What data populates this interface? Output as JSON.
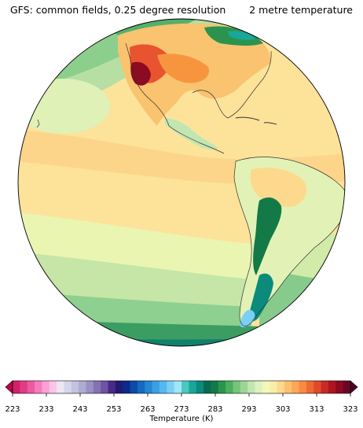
{
  "header": {
    "title_left": "GFS: common fields, 0.25 degree resolution",
    "title_right": "2 metre temperature"
  },
  "map": {
    "projection": "orthographic",
    "region": "Americas and Pacific Ocean",
    "field": "2 metre temperature"
  },
  "colorbar": {
    "label": "Temperature (K)",
    "min": 223,
    "max": 323,
    "step": 2.5,
    "extend": "both",
    "ticks": [
      "223",
      "233",
      "243",
      "253",
      "263",
      "273",
      "283",
      "293",
      "303",
      "313",
      "323"
    ],
    "colors": [
      "#c2004f",
      "#d3206a",
      "#e03c84",
      "#ec5aa0",
      "#f57cbd",
      "#fca0d7",
      "#ffc4ea",
      "#ebe8f4",
      "#d6d6ea",
      "#c3c3e0",
      "#aeaad3",
      "#9b90c4",
      "#8572b3",
      "#6f54a2",
      "#4a2a88",
      "#231a73",
      "#0c2a8a",
      "#0b4aa8",
      "#1469c0",
      "#2586d6",
      "#3aa0e6",
      "#55b8f0",
      "#79d0f5",
      "#9fe6f6",
      "#4cc8bf",
      "#1aa79a",
      "#0a8b7b",
      "#076b53",
      "#137a47",
      "#2a944f",
      "#4dae5e",
      "#74c47a",
      "#9dd596",
      "#c2e6b2",
      "#def2c0",
      "#f2f8b8",
      "#fbeda6",
      "#fdd98e",
      "#fdc071",
      "#fca657",
      "#f88a43",
      "#ef6a32",
      "#e04a29",
      "#c92a24",
      "#ae1421",
      "#8c0a22",
      "#6e0425",
      "#4d0026"
    ]
  }
}
